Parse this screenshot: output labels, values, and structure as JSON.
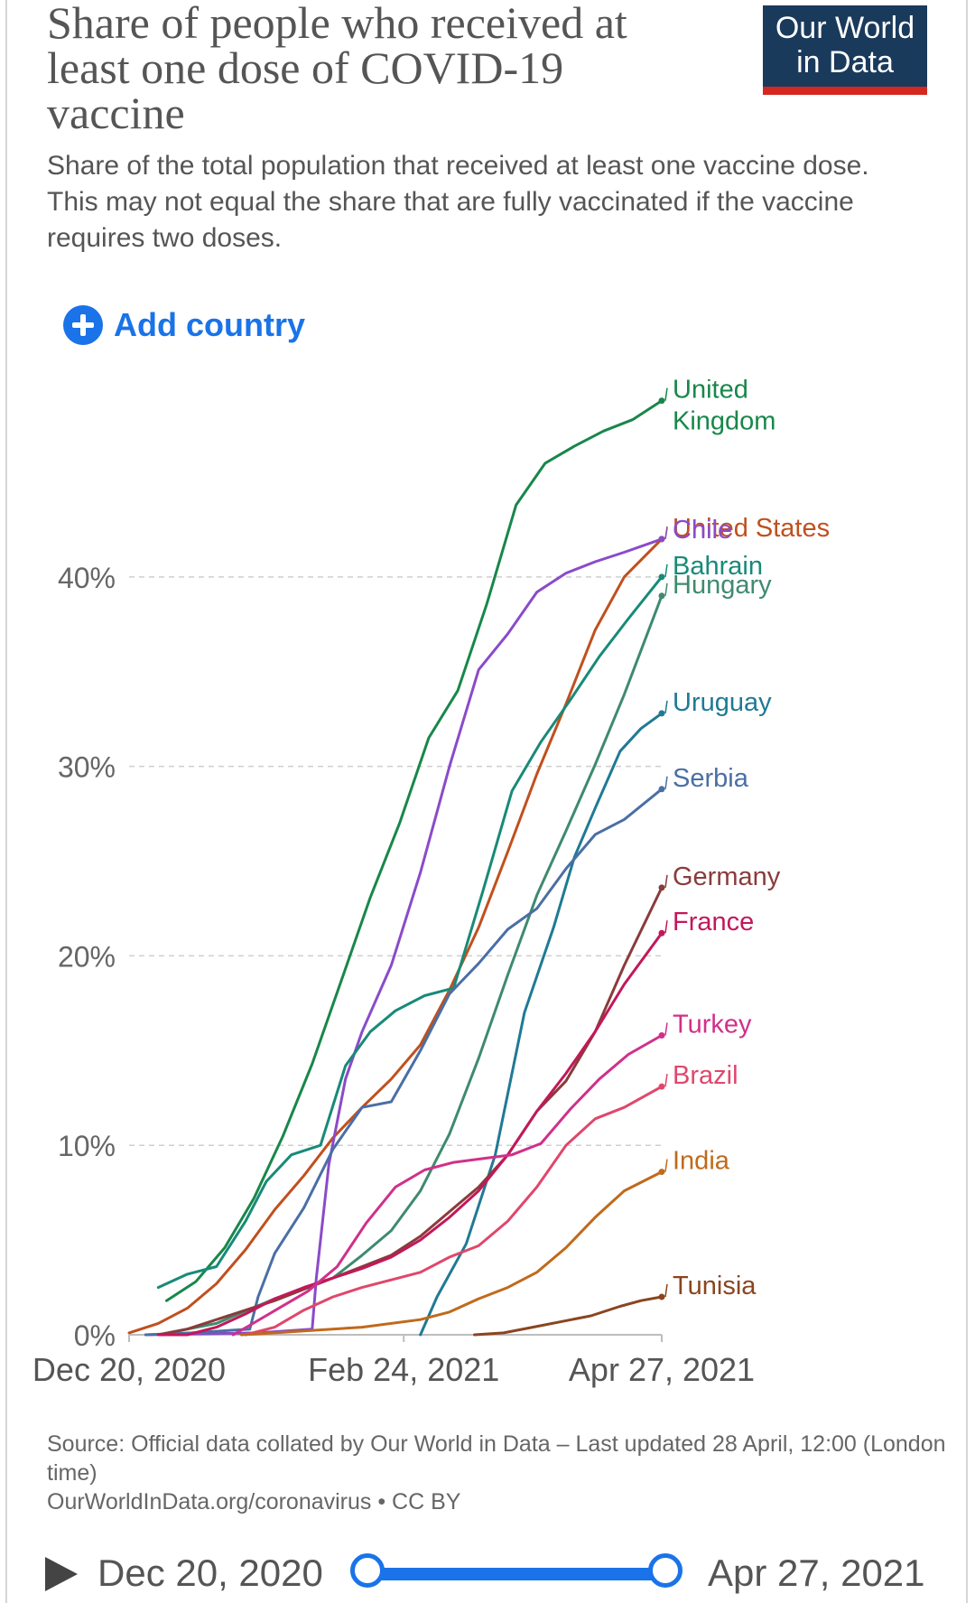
{
  "header": {
    "title": "Share of people who received at least one dose of COVID-19 vaccine",
    "subtitle": "Share of the total population that received at least one vaccine dose. This may not equal the share that are fully vaccinated if the vaccine requires two doses.",
    "logo_line1": "Our World",
    "logo_line2": "in Data"
  },
  "controls": {
    "add_country_label": "Add country"
  },
  "footer": {
    "source": "Source: Official data collated by Our World in Data – Last updated 28 April, 12:00 (London time)",
    "link": "OurWorldInData.org/coronavirus • CC BY"
  },
  "timeline": {
    "start_label": "Dec 20, 2020",
    "end_label": "Apr 27, 2021"
  },
  "colors": {
    "accent": "#1a73e8",
    "logo_bg": "#1a3a5c",
    "logo_bar": "#d4271f"
  },
  "chart_data": {
    "type": "line",
    "title": "Share of people who received at least one dose of COVID-19 vaccine",
    "ylabel": "",
    "xlabel": "",
    "x_domain": [
      "2020-12-20",
      "2021-04-27"
    ],
    "x_ticks": [
      {
        "date": "2020-12-20",
        "label": "Dec 20, 2020"
      },
      {
        "date": "2021-02-24",
        "label": "Feb 24, 2021"
      },
      {
        "date": "2021-04-27",
        "label": "Apr 27, 2021"
      }
    ],
    "ylim": [
      0,
      49
    ],
    "y_ticks": [
      {
        "value": 0,
        "label": "0%"
      },
      {
        "value": 10,
        "label": "10%"
      },
      {
        "value": 20,
        "label": "20%"
      },
      {
        "value": 30,
        "label": "30%"
      },
      {
        "value": 40,
        "label": "40%"
      }
    ],
    "grid": "horizontal dashed",
    "legend": "end-of-line labels",
    "series": [
      {
        "name": "United Kingdom",
        "label_lines": [
          "United",
          "Kingdom"
        ],
        "color": "#18874a",
        "points": [
          [
            "2020-12-29",
            1.8
          ],
          [
            "2021-01-05",
            2.8
          ],
          [
            "2021-01-12",
            4.6
          ],
          [
            "2021-01-19",
            7.2
          ],
          [
            "2021-01-26",
            10.5
          ],
          [
            "2021-02-02",
            14.3
          ],
          [
            "2021-02-09",
            18.7
          ],
          [
            "2021-02-16",
            23.1
          ],
          [
            "2021-02-23",
            27.0
          ],
          [
            "2021-03-02",
            31.5
          ],
          [
            "2021-03-09",
            34.0
          ],
          [
            "2021-03-16",
            38.6
          ],
          [
            "2021-03-23",
            43.8
          ],
          [
            "2021-03-30",
            46.0
          ],
          [
            "2021-04-06",
            46.9
          ],
          [
            "2021-04-13",
            47.7
          ],
          [
            "2021-04-20",
            48.3
          ],
          [
            "2021-04-27",
            49.3
          ]
        ]
      },
      {
        "name": "United States",
        "label_lines": [
          "United States"
        ],
        "color": "#c0501e",
        "points": [
          [
            "2020-12-20",
            0.1
          ],
          [
            "2020-12-27",
            0.6
          ],
          [
            "2021-01-03",
            1.4
          ],
          [
            "2021-01-10",
            2.7
          ],
          [
            "2021-01-17",
            4.5
          ],
          [
            "2021-01-24",
            6.6
          ],
          [
            "2021-01-31",
            8.4
          ],
          [
            "2021-02-07",
            10.4
          ],
          [
            "2021-02-14",
            12.0
          ],
          [
            "2021-02-21",
            13.5
          ],
          [
            "2021-02-28",
            15.3
          ],
          [
            "2021-03-07",
            18.2
          ],
          [
            "2021-03-14",
            21.5
          ],
          [
            "2021-03-21",
            25.5
          ],
          [
            "2021-03-28",
            29.6
          ],
          [
            "2021-04-04",
            33.3
          ],
          [
            "2021-04-11",
            37.2
          ],
          [
            "2021-04-18",
            40.0
          ],
          [
            "2021-04-27",
            42.0
          ]
        ]
      },
      {
        "name": "Chile",
        "label_lines": [
          "Chile"
        ],
        "color": "#8a4bc9",
        "points": [
          [
            "2020-12-24",
            0.0
          ],
          [
            "2021-01-20",
            0.1
          ],
          [
            "2021-02-02",
            0.3
          ],
          [
            "2021-02-03",
            3.0
          ],
          [
            "2021-02-06",
            9.0
          ],
          [
            "2021-02-10",
            13.5
          ],
          [
            "2021-02-14",
            16.0
          ],
          [
            "2021-02-21",
            19.5
          ],
          [
            "2021-02-28",
            24.4
          ],
          [
            "2021-03-07",
            30.0
          ],
          [
            "2021-03-14",
            35.1
          ],
          [
            "2021-03-21",
            37.0
          ],
          [
            "2021-03-28",
            39.2
          ],
          [
            "2021-04-04",
            40.2
          ],
          [
            "2021-04-11",
            40.8
          ],
          [
            "2021-04-18",
            41.3
          ],
          [
            "2021-04-27",
            42.0
          ]
        ]
      },
      {
        "name": "Bahrain",
        "label_lines": [
          "Bahrain"
        ],
        "color": "#188a78",
        "points": [
          [
            "2020-12-27",
            2.5
          ],
          [
            "2021-01-03",
            3.2
          ],
          [
            "2021-01-10",
            3.6
          ],
          [
            "2021-01-17",
            6.0
          ],
          [
            "2021-01-22",
            8.1
          ],
          [
            "2021-01-28",
            9.5
          ],
          [
            "2021-02-04",
            10.0
          ],
          [
            "2021-02-10",
            14.2
          ],
          [
            "2021-02-16",
            16.0
          ],
          [
            "2021-02-22",
            17.1
          ],
          [
            "2021-03-01",
            17.9
          ],
          [
            "2021-03-08",
            18.3
          ],
          [
            "2021-03-15",
            23.4
          ],
          [
            "2021-03-22",
            28.7
          ],
          [
            "2021-03-29",
            31.3
          ],
          [
            "2021-04-05",
            33.5
          ],
          [
            "2021-04-12",
            35.8
          ],
          [
            "2021-04-19",
            37.8
          ],
          [
            "2021-04-27",
            40.0
          ]
        ]
      },
      {
        "name": "Hungary",
        "label_lines": [
          "Hungary"
        ],
        "color": "#3f8a6e",
        "points": [
          [
            "2020-12-27",
            0.0
          ],
          [
            "2021-01-10",
            0.6
          ],
          [
            "2021-01-24",
            1.9
          ],
          [
            "2021-02-07",
            3.0
          ],
          [
            "2021-02-14",
            4.2
          ],
          [
            "2021-02-21",
            5.5
          ],
          [
            "2021-02-28",
            7.6
          ],
          [
            "2021-03-07",
            10.6
          ],
          [
            "2021-03-14",
            14.6
          ],
          [
            "2021-03-21",
            19.0
          ],
          [
            "2021-03-28",
            23.2
          ],
          [
            "2021-04-04",
            26.6
          ],
          [
            "2021-04-11",
            30.1
          ],
          [
            "2021-04-18",
            33.8
          ],
          [
            "2021-04-27",
            39.0
          ]
        ]
      },
      {
        "name": "Uruguay",
        "label_lines": [
          "Uruguay"
        ],
        "color": "#1f7a94",
        "points": [
          [
            "2021-02-28",
            0.0
          ],
          [
            "2021-03-04",
            2.0
          ],
          [
            "2021-03-11",
            4.8
          ],
          [
            "2021-03-18",
            9.5
          ],
          [
            "2021-03-25",
            17.0
          ],
          [
            "2021-04-01",
            21.5
          ],
          [
            "2021-04-06",
            25.2
          ],
          [
            "2021-04-11",
            27.8
          ],
          [
            "2021-04-17",
            30.8
          ],
          [
            "2021-04-22",
            32.0
          ],
          [
            "2021-04-27",
            32.8
          ]
        ]
      },
      {
        "name": "Serbia",
        "label_lines": [
          "Serbia"
        ],
        "color": "#4a6fa5",
        "points": [
          [
            "2020-12-24",
            0.0
          ],
          [
            "2021-01-04",
            0.1
          ],
          [
            "2021-01-18",
            0.3
          ],
          [
            "2021-01-20",
            2.0
          ],
          [
            "2021-01-24",
            4.3
          ],
          [
            "2021-01-31",
            6.7
          ],
          [
            "2021-02-07",
            9.8
          ],
          [
            "2021-02-14",
            12.0
          ],
          [
            "2021-02-21",
            12.3
          ],
          [
            "2021-02-28",
            15.0
          ],
          [
            "2021-03-07",
            18.0
          ],
          [
            "2021-03-14",
            19.6
          ],
          [
            "2021-03-21",
            21.4
          ],
          [
            "2021-03-28",
            22.5
          ],
          [
            "2021-04-04",
            24.6
          ],
          [
            "2021-04-11",
            26.4
          ],
          [
            "2021-04-18",
            27.2
          ],
          [
            "2021-04-27",
            28.8
          ]
        ]
      },
      {
        "name": "Germany",
        "label_lines": [
          "Germany"
        ],
        "color": "#8a3b3b",
        "points": [
          [
            "2020-12-27",
            0.0
          ],
          [
            "2021-01-03",
            0.3
          ],
          [
            "2021-01-10",
            0.8
          ],
          [
            "2021-01-17",
            1.3
          ],
          [
            "2021-01-24",
            1.8
          ],
          [
            "2021-01-31",
            2.4
          ],
          [
            "2021-02-07",
            3.0
          ],
          [
            "2021-02-14",
            3.6
          ],
          [
            "2021-02-21",
            4.2
          ],
          [
            "2021-02-28",
            5.2
          ],
          [
            "2021-03-07",
            6.5
          ],
          [
            "2021-03-14",
            7.8
          ],
          [
            "2021-03-21",
            9.5
          ],
          [
            "2021-03-28",
            11.8
          ],
          [
            "2021-04-04",
            13.4
          ],
          [
            "2021-04-11",
            16.0
          ],
          [
            "2021-04-18",
            19.5
          ],
          [
            "2021-04-27",
            23.6
          ]
        ]
      },
      {
        "name": "France",
        "label_lines": [
          "France"
        ],
        "color": "#c2185b",
        "points": [
          [
            "2020-12-27",
            0.0
          ],
          [
            "2021-01-03",
            0.0
          ],
          [
            "2021-01-10",
            0.4
          ],
          [
            "2021-01-17",
            1.1
          ],
          [
            "2021-01-24",
            1.9
          ],
          [
            "2021-01-31",
            2.5
          ],
          [
            "2021-02-07",
            3.0
          ],
          [
            "2021-02-14",
            3.5
          ],
          [
            "2021-02-21",
            4.1
          ],
          [
            "2021-02-28",
            5.0
          ],
          [
            "2021-03-07",
            6.2
          ],
          [
            "2021-03-14",
            7.6
          ],
          [
            "2021-03-21",
            9.5
          ],
          [
            "2021-03-28",
            11.8
          ],
          [
            "2021-04-04",
            13.8
          ],
          [
            "2021-04-11",
            16.0
          ],
          [
            "2021-04-18",
            18.5
          ],
          [
            "2021-04-27",
            21.2
          ]
        ]
      },
      {
        "name": "Turkey",
        "label_lines": [
          "Turkey"
        ],
        "color": "#d0308a",
        "points": [
          [
            "2021-01-14",
            0.0
          ],
          [
            "2021-01-18",
            0.5
          ],
          [
            "2021-01-25",
            1.4
          ],
          [
            "2021-02-01",
            2.3
          ],
          [
            "2021-02-08",
            3.6
          ],
          [
            "2021-02-15",
            5.9
          ],
          [
            "2021-02-22",
            7.8
          ],
          [
            "2021-03-01",
            8.7
          ],
          [
            "2021-03-08",
            9.1
          ],
          [
            "2021-03-15",
            9.3
          ],
          [
            "2021-03-22",
            9.5
          ],
          [
            "2021-03-29",
            10.1
          ],
          [
            "2021-04-05",
            11.9
          ],
          [
            "2021-04-12",
            13.5
          ],
          [
            "2021-04-19",
            14.8
          ],
          [
            "2021-04-27",
            15.8
          ]
        ]
      },
      {
        "name": "Brazil",
        "label_lines": [
          "Brazil"
        ],
        "color": "#e0476b",
        "points": [
          [
            "2021-01-17",
            0.0
          ],
          [
            "2021-01-24",
            0.4
          ],
          [
            "2021-01-31",
            1.3
          ],
          [
            "2021-02-07",
            2.0
          ],
          [
            "2021-02-14",
            2.5
          ],
          [
            "2021-02-21",
            2.9
          ],
          [
            "2021-02-28",
            3.3
          ],
          [
            "2021-03-07",
            4.1
          ],
          [
            "2021-03-14",
            4.7
          ],
          [
            "2021-03-21",
            6.0
          ],
          [
            "2021-03-28",
            7.8
          ],
          [
            "2021-04-04",
            10.0
          ],
          [
            "2021-04-11",
            11.4
          ],
          [
            "2021-04-18",
            12.0
          ],
          [
            "2021-04-27",
            13.1
          ]
        ]
      },
      {
        "name": "India",
        "label_lines": [
          "India"
        ],
        "color": "#c06a1b",
        "points": [
          [
            "2021-01-16",
            0.0
          ],
          [
            "2021-01-24",
            0.1
          ],
          [
            "2021-01-31",
            0.2
          ],
          [
            "2021-02-14",
            0.4
          ],
          [
            "2021-02-28",
            0.8
          ],
          [
            "2021-03-07",
            1.2
          ],
          [
            "2021-03-14",
            1.9
          ],
          [
            "2021-03-21",
            2.5
          ],
          [
            "2021-03-28",
            3.3
          ],
          [
            "2021-04-04",
            4.6
          ],
          [
            "2021-04-11",
            6.2
          ],
          [
            "2021-04-18",
            7.6
          ],
          [
            "2021-04-27",
            8.6
          ]
        ]
      },
      {
        "name": "Tunisia",
        "label_lines": [
          "Tunisia"
        ],
        "color": "#8a4520",
        "points": [
          [
            "2021-03-13",
            0.0
          ],
          [
            "2021-03-20",
            0.1
          ],
          [
            "2021-03-27",
            0.4
          ],
          [
            "2021-04-03",
            0.7
          ],
          [
            "2021-04-10",
            1.0
          ],
          [
            "2021-04-17",
            1.5
          ],
          [
            "2021-04-22",
            1.8
          ],
          [
            "2021-04-27",
            2.0
          ]
        ]
      }
    ]
  }
}
